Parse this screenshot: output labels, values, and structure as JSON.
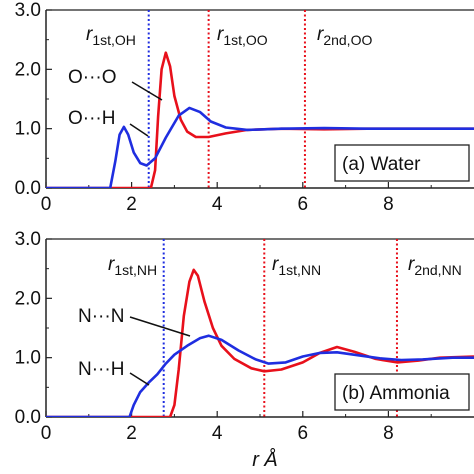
{
  "chart_data": [
    {
      "type": "line",
      "panel_label": "(a)  Water",
      "xlim": [
        0,
        10
      ],
      "ylim": [
        0,
        3.0
      ],
      "x_ticks": [
        "0",
        "2",
        "4",
        "6",
        "8"
      ],
      "y_ticks": [
        "0.0",
        "1.0",
        "2.0",
        "3.0"
      ],
      "series": [
        {
          "color": "#e8101b",
          "label": "O···O",
          "points": [
            [
              0,
              0
            ],
            [
              2.45,
              0
            ],
            [
              2.55,
              0.3
            ],
            [
              2.62,
              1.2
            ],
            [
              2.7,
              2.0
            ],
            [
              2.8,
              2.28
            ],
            [
              2.9,
              2.05
            ],
            [
              3.0,
              1.55
            ],
            [
              3.15,
              1.15
            ],
            [
              3.3,
              0.95
            ],
            [
              3.5,
              0.86
            ],
            [
              3.8,
              0.86
            ],
            [
              4.2,
              0.92
            ],
            [
              4.7,
              0.98
            ],
            [
              5.5,
              1.0
            ],
            [
              6.5,
              0.99
            ],
            [
              7.5,
              1.0
            ],
            [
              8.5,
              1.0
            ],
            [
              10,
              1.0
            ]
          ]
        },
        {
          "color": "#1f2ee0",
          "label": "O···H",
          "points": [
            [
              0,
              0
            ],
            [
              1.5,
              0
            ],
            [
              1.62,
              0.45
            ],
            [
              1.72,
              0.9
            ],
            [
              1.82,
              1.03
            ],
            [
              1.92,
              0.9
            ],
            [
              2.05,
              0.6
            ],
            [
              2.2,
              0.42
            ],
            [
              2.35,
              0.38
            ],
            [
              2.55,
              0.5
            ],
            [
              2.8,
              0.85
            ],
            [
              3.1,
              1.22
            ],
            [
              3.35,
              1.35
            ],
            [
              3.6,
              1.28
            ],
            [
              3.85,
              1.12
            ],
            [
              4.2,
              1.02
            ],
            [
              4.7,
              0.98
            ],
            [
              5.5,
              1.0
            ],
            [
              6.5,
              1.01
            ],
            [
              7.5,
              1.0
            ],
            [
              8.5,
              1.0
            ],
            [
              10,
              1.0
            ]
          ]
        }
      ],
      "vlines": [
        {
          "x": 2.4,
          "color": "#1f2ee0",
          "label_main": "r",
          "label_sub": "1st,OH"
        },
        {
          "x": 3.8,
          "color": "#e8101b",
          "label_main": "r",
          "label_sub": "1st,OO"
        },
        {
          "x": 6.05,
          "color": "#e8101b",
          "label_main": "r",
          "label_sub": "2nd,OO"
        }
      ]
    },
    {
      "type": "line",
      "panel_label": "(b)  Ammonia",
      "xlim": [
        0,
        10
      ],
      "ylim": [
        0,
        3.0
      ],
      "x_ticks": [
        "0",
        "2",
        "4",
        "6",
        "8"
      ],
      "y_ticks": [
        "0.0",
        "1.0",
        "2.0",
        "3.0"
      ],
      "x_axis_title": "r   Å",
      "series": [
        {
          "color": "#e8101b",
          "label": "N···N",
          "points": [
            [
              0,
              0
            ],
            [
              2.9,
              0
            ],
            [
              3.0,
              0.2
            ],
            [
              3.1,
              0.8
            ],
            [
              3.22,
              1.7
            ],
            [
              3.35,
              2.28
            ],
            [
              3.45,
              2.48
            ],
            [
              3.55,
              2.38
            ],
            [
              3.7,
              1.95
            ],
            [
              3.9,
              1.5
            ],
            [
              4.1,
              1.2
            ],
            [
              4.4,
              0.98
            ],
            [
              4.8,
              0.82
            ],
            [
              5.1,
              0.77
            ],
            [
              5.5,
              0.8
            ],
            [
              6.0,
              0.92
            ],
            [
              6.4,
              1.08
            ],
            [
              6.8,
              1.18
            ],
            [
              7.2,
              1.1
            ],
            [
              7.7,
              0.98
            ],
            [
              8.2,
              0.92
            ],
            [
              8.7,
              0.95
            ],
            [
              9.2,
              1.0
            ],
            [
              10,
              1.02
            ]
          ]
        },
        {
          "color": "#1f2ee0",
          "label": "N···H",
          "points": [
            [
              0,
              0
            ],
            [
              1.95,
              0
            ],
            [
              2.05,
              0.2
            ],
            [
              2.2,
              0.42
            ],
            [
              2.4,
              0.58
            ],
            [
              2.6,
              0.72
            ],
            [
              2.8,
              0.9
            ],
            [
              3.0,
              1.05
            ],
            [
              3.3,
              1.2
            ],
            [
              3.6,
              1.33
            ],
            [
              3.8,
              1.37
            ],
            [
              4.1,
              1.3
            ],
            [
              4.5,
              1.12
            ],
            [
              4.9,
              0.97
            ],
            [
              5.2,
              0.9
            ],
            [
              5.6,
              0.92
            ],
            [
              6.0,
              1.02
            ],
            [
              6.4,
              1.08
            ],
            [
              6.8,
              1.09
            ],
            [
              7.3,
              1.04
            ],
            [
              7.8,
              0.99
            ],
            [
              8.3,
              0.96
            ],
            [
              8.8,
              0.97
            ],
            [
              9.5,
              1.0
            ],
            [
              10,
              1.0
            ]
          ]
        }
      ],
      "vlines": [
        {
          "x": 2.75,
          "color": "#1f2ee0",
          "label_main": "r",
          "label_sub": "1st,NH"
        },
        {
          "x": 5.1,
          "color": "#e8101b",
          "label_main": "r",
          "label_sub": "1st,NN"
        },
        {
          "x": 8.2,
          "color": "#e8101b",
          "label_main": "r",
          "label_sub": "2nd,NN"
        }
      ]
    }
  ]
}
